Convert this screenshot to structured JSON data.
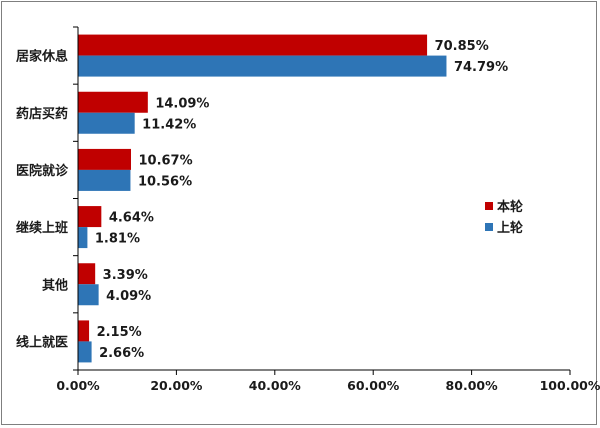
{
  "chart_data": {
    "type": "bar",
    "orientation": "horizontal",
    "categories": [
      "居家休息",
      "药店买药",
      "医院就诊",
      "继续上班",
      "其他",
      "线上就医"
    ],
    "series": [
      {
        "name": "本轮",
        "color": "#c00000",
        "values": [
          70.85,
          14.09,
          10.67,
          4.64,
          3.39,
          2.15
        ],
        "labels": [
          "70.85%",
          "14.09%",
          "10.67%",
          "4.64%",
          "3.39%",
          "2.15%"
        ]
      },
      {
        "name": "上轮",
        "color": "#2e75b6",
        "values": [
          74.79,
          11.42,
          10.56,
          1.81,
          4.09,
          2.66
        ],
        "labels": [
          "74.79%",
          "11.42%",
          "10.56%",
          "1.81%",
          "4.09%",
          "2.66%"
        ]
      }
    ],
    "x_ticks": [
      "0.00%",
      "20.00%",
      "40.00%",
      "60.00%",
      "80.00%",
      "100.00%"
    ],
    "xlim": [
      0,
      100
    ],
    "grid": false,
    "legend_position": "right",
    "title": "",
    "xlabel": "",
    "ylabel": ""
  }
}
